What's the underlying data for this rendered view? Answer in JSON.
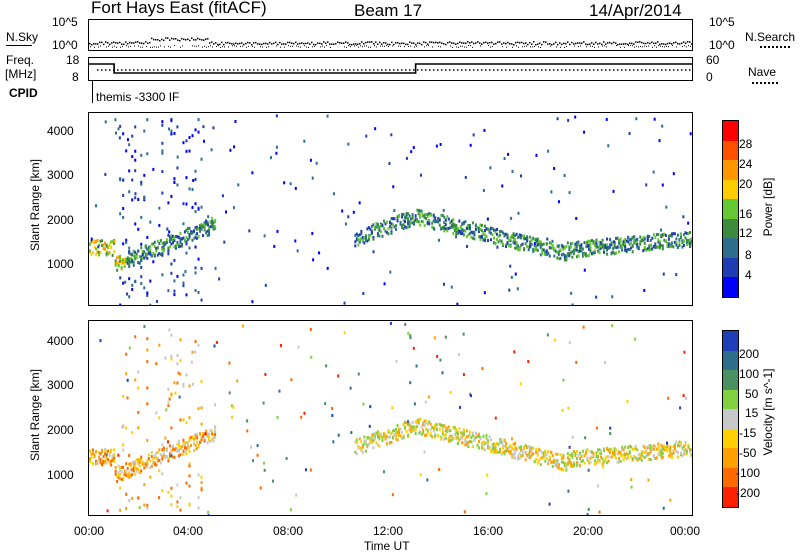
{
  "header": {
    "radar": "Fort Hays East (fitACF)",
    "beam": "Beam 17",
    "date": "14/Apr/2014"
  },
  "sky_panel": {
    "left_label": "N.Sky",
    "right_label": "N.Search",
    "left_ticks": [
      "10^5",
      "10^0"
    ],
    "right_ticks": [
      "10^5",
      "10^0"
    ]
  },
  "freq_panel": {
    "label_line1": "Freq.",
    "label_line2": "[MHz]",
    "left_ticks": [
      "18",
      "8"
    ],
    "right_ticks": [
      "60",
      "0"
    ],
    "right_label": "Nave"
  },
  "cpid": {
    "label": "CPID",
    "value": "themis -3300 IF"
  },
  "x_axis": {
    "ticks": [
      "00:00",
      "04:00",
      "08:00",
      "12:00",
      "16:00",
      "20:00",
      "00:00"
    ],
    "label": "Time UT"
  },
  "chart_data": [
    {
      "type": "heatmap",
      "name": "power",
      "ylabel": "Slant Range [km]",
      "yticks": [
        "4000",
        "3000",
        "2000",
        "1000"
      ],
      "colorbar_label": "Power [dB]",
      "colorbar_ticks": [
        "28",
        "24",
        "20",
        "16",
        "12",
        "8",
        "4"
      ],
      "colorbar_colors": [
        "#0000ff",
        "#1e3cb4",
        "#2e6e8c",
        "#3c8c3c",
        "#64c832",
        "#ffcc00",
        "#ff9600",
        "#ff5000",
        "#ff0000"
      ],
      "xlim": [
        0,
        24
      ],
      "ylim": [
        180,
        4500
      ]
    },
    {
      "type": "heatmap",
      "name": "velocity",
      "ylabel": "Slant Range [km]",
      "yticks": [
        "4000",
        "3000",
        "2000",
        "1000"
      ],
      "colorbar_label": "Velocity [m s^-1]",
      "colorbar_ticks": [
        "200",
        "100",
        "50",
        "15",
        "-15",
        "-50",
        "-100",
        "-200"
      ],
      "colorbar_colors": [
        "#1f3fb8",
        "#2e6e8c",
        "#4a9060",
        "#80d040",
        "#c8c8c8",
        "#ffd000",
        "#ffa000",
        "#ff6a00",
        "#ff2000"
      ],
      "xlim": [
        0,
        24
      ],
      "ylim": [
        180,
        4500
      ]
    }
  ]
}
